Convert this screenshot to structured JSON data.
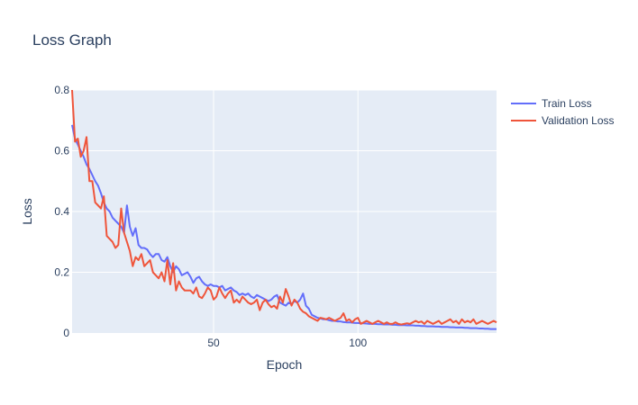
{
  "chart_data": {
    "type": "line",
    "title": "Loss Graph",
    "xlabel": "Epoch",
    "ylabel": "Loss",
    "xlim": [
      1,
      148
    ],
    "ylim": [
      0,
      0.8
    ],
    "xticks": [
      50,
      100
    ],
    "yticks": [
      0,
      0.2,
      0.4,
      0.6,
      0.8
    ],
    "grid": true,
    "legend_position": "top-right",
    "plot_background": "#e5ecf6",
    "series": [
      {
        "name": "Train Loss",
        "color": "#636efa",
        "points": [
          [
            1,
            0.685
          ],
          [
            2,
            0.64
          ],
          [
            3,
            0.62
          ],
          [
            4,
            0.6
          ],
          [
            5,
            0.58
          ],
          [
            6,
            0.555
          ],
          [
            7,
            0.54
          ],
          [
            8,
            0.52
          ],
          [
            9,
            0.5
          ],
          [
            10,
            0.485
          ],
          [
            11,
            0.46
          ],
          [
            12,
            0.43
          ],
          [
            13,
            0.41
          ],
          [
            14,
            0.4
          ],
          [
            15,
            0.38
          ],
          [
            16,
            0.37
          ],
          [
            17,
            0.36
          ],
          [
            18,
            0.35
          ],
          [
            19,
            0.33
          ],
          [
            20,
            0.42
          ],
          [
            21,
            0.35
          ],
          [
            22,
            0.32
          ],
          [
            23,
            0.345
          ],
          [
            24,
            0.29
          ],
          [
            25,
            0.28
          ],
          [
            26,
            0.28
          ],
          [
            27,
            0.275
          ],
          [
            28,
            0.26
          ],
          [
            29,
            0.25
          ],
          [
            30,
            0.26
          ],
          [
            31,
            0.26
          ],
          [
            32,
            0.24
          ],
          [
            33,
            0.235
          ],
          [
            34,
            0.25
          ],
          [
            35,
            0.22
          ],
          [
            36,
            0.2
          ],
          [
            37,
            0.22
          ],
          [
            38,
            0.21
          ],
          [
            39,
            0.19
          ],
          [
            40,
            0.195
          ],
          [
            41,
            0.2
          ],
          [
            42,
            0.185
          ],
          [
            43,
            0.165
          ],
          [
            44,
            0.18
          ],
          [
            45,
            0.185
          ],
          [
            46,
            0.17
          ],
          [
            47,
            0.16
          ],
          [
            48,
            0.155
          ],
          [
            49,
            0.16
          ],
          [
            50,
            0.155
          ],
          [
            51,
            0.155
          ],
          [
            52,
            0.15
          ],
          [
            53,
            0.155
          ],
          [
            54,
            0.14
          ],
          [
            55,
            0.145
          ],
          [
            56,
            0.15
          ],
          [
            57,
            0.14
          ],
          [
            58,
            0.135
          ],
          [
            59,
            0.125
          ],
          [
            60,
            0.13
          ],
          [
            61,
            0.125
          ],
          [
            62,
            0.13
          ],
          [
            63,
            0.12
          ],
          [
            64,
            0.115
          ],
          [
            65,
            0.125
          ],
          [
            66,
            0.12
          ],
          [
            67,
            0.115
          ],
          [
            68,
            0.11
          ],
          [
            69,
            0.105
          ],
          [
            70,
            0.11
          ],
          [
            71,
            0.12
          ],
          [
            72,
            0.125
          ],
          [
            73,
            0.1
          ],
          [
            74,
            0.095
          ],
          [
            75,
            0.09
          ],
          [
            76,
            0.1
          ],
          [
            77,
            0.095
          ],
          [
            78,
            0.105
          ],
          [
            79,
            0.1
          ],
          [
            80,
            0.11
          ],
          [
            81,
            0.13
          ],
          [
            82,
            0.09
          ],
          [
            83,
            0.08
          ],
          [
            84,
            0.06
          ],
          [
            85,
            0.055
          ],
          [
            86,
            0.05
          ],
          [
            87,
            0.048
          ],
          [
            88,
            0.045
          ],
          [
            89,
            0.045
          ],
          [
            90,
            0.042
          ],
          [
            91,
            0.04
          ],
          [
            92,
            0.04
          ],
          [
            93,
            0.038
          ],
          [
            94,
            0.038
          ],
          [
            95,
            0.036
          ],
          [
            96,
            0.035
          ],
          [
            97,
            0.035
          ],
          [
            98,
            0.034
          ],
          [
            99,
            0.033
          ],
          [
            100,
            0.033
          ],
          [
            101,
            0.032
          ],
          [
            102,
            0.032
          ],
          [
            103,
            0.031
          ],
          [
            104,
            0.03
          ],
          [
            105,
            0.03
          ],
          [
            106,
            0.03
          ],
          [
            107,
            0.029
          ],
          [
            108,
            0.029
          ],
          [
            109,
            0.028
          ],
          [
            110,
            0.028
          ],
          [
            111,
            0.028
          ],
          [
            112,
            0.027
          ],
          [
            113,
            0.027
          ],
          [
            114,
            0.026
          ],
          [
            115,
            0.026
          ],
          [
            116,
            0.026
          ],
          [
            117,
            0.025
          ],
          [
            118,
            0.025
          ],
          [
            119,
            0.025
          ],
          [
            120,
            0.024
          ],
          [
            121,
            0.024
          ],
          [
            122,
            0.023
          ],
          [
            123,
            0.023
          ],
          [
            124,
            0.022
          ],
          [
            125,
            0.022
          ],
          [
            126,
            0.022
          ],
          [
            127,
            0.021
          ],
          [
            128,
            0.021
          ],
          [
            129,
            0.02
          ],
          [
            130,
            0.02
          ],
          [
            131,
            0.02
          ],
          [
            132,
            0.019
          ],
          [
            133,
            0.019
          ],
          [
            134,
            0.018
          ],
          [
            135,
            0.018
          ],
          [
            136,
            0.018
          ],
          [
            137,
            0.017
          ],
          [
            138,
            0.017
          ],
          [
            139,
            0.016
          ],
          [
            140,
            0.016
          ],
          [
            141,
            0.016
          ],
          [
            142,
            0.015
          ],
          [
            143,
            0.015
          ],
          [
            144,
            0.014
          ],
          [
            145,
            0.014
          ],
          [
            146,
            0.013
          ],
          [
            147,
            0.013
          ],
          [
            148,
            0.013
          ]
        ]
      },
      {
        "name": "Validation Loss",
        "color": "#ef553b",
        "points": [
          [
            1,
            0.8
          ],
          [
            2,
            0.63
          ],
          [
            3,
            0.64
          ],
          [
            4,
            0.58
          ],
          [
            5,
            0.6
          ],
          [
            6,
            0.645
          ],
          [
            7,
            0.5
          ],
          [
            8,
            0.5
          ],
          [
            9,
            0.43
          ],
          [
            10,
            0.42
          ],
          [
            11,
            0.41
          ],
          [
            12,
            0.45
          ],
          [
            13,
            0.32
          ],
          [
            14,
            0.31
          ],
          [
            15,
            0.3
          ],
          [
            16,
            0.28
          ],
          [
            17,
            0.29
          ],
          [
            18,
            0.41
          ],
          [
            19,
            0.33
          ],
          [
            20,
            0.3
          ],
          [
            21,
            0.27
          ],
          [
            22,
            0.22
          ],
          [
            23,
            0.25
          ],
          [
            24,
            0.24
          ],
          [
            25,
            0.26
          ],
          [
            26,
            0.22
          ],
          [
            27,
            0.23
          ],
          [
            28,
            0.24
          ],
          [
            29,
            0.2
          ],
          [
            30,
            0.19
          ],
          [
            31,
            0.18
          ],
          [
            32,
            0.2
          ],
          [
            33,
            0.17
          ],
          [
            34,
            0.24
          ],
          [
            35,
            0.16
          ],
          [
            36,
            0.23
          ],
          [
            37,
            0.14
          ],
          [
            38,
            0.17
          ],
          [
            39,
            0.15
          ],
          [
            40,
            0.14
          ],
          [
            41,
            0.14
          ],
          [
            42,
            0.14
          ],
          [
            43,
            0.13
          ],
          [
            44,
            0.15
          ],
          [
            45,
            0.12
          ],
          [
            46,
            0.115
          ],
          [
            47,
            0.13
          ],
          [
            48,
            0.15
          ],
          [
            49,
            0.14
          ],
          [
            50,
            0.11
          ],
          [
            51,
            0.12
          ],
          [
            52,
            0.15
          ],
          [
            53,
            0.13
          ],
          [
            54,
            0.115
          ],
          [
            55,
            0.13
          ],
          [
            56,
            0.14
          ],
          [
            57,
            0.1
          ],
          [
            58,
            0.11
          ],
          [
            59,
            0.1
          ],
          [
            60,
            0.12
          ],
          [
            61,
            0.11
          ],
          [
            62,
            0.1
          ],
          [
            63,
            0.095
          ],
          [
            64,
            0.1
          ],
          [
            65,
            0.11
          ],
          [
            66,
            0.075
          ],
          [
            67,
            0.1
          ],
          [
            68,
            0.11
          ],
          [
            69,
            0.095
          ],
          [
            70,
            0.085
          ],
          [
            71,
            0.09
          ],
          [
            72,
            0.08
          ],
          [
            73,
            0.12
          ],
          [
            74,
            0.1
          ],
          [
            75,
            0.145
          ],
          [
            76,
            0.12
          ],
          [
            77,
            0.09
          ],
          [
            78,
            0.11
          ],
          [
            79,
            0.1
          ],
          [
            80,
            0.08
          ],
          [
            81,
            0.07
          ],
          [
            82,
            0.065
          ],
          [
            83,
            0.055
          ],
          [
            84,
            0.05
          ],
          [
            85,
            0.045
          ],
          [
            86,
            0.04
          ],
          [
            87,
            0.05
          ],
          [
            88,
            0.048
          ],
          [
            89,
            0.045
          ],
          [
            90,
            0.05
          ],
          [
            91,
            0.045
          ],
          [
            92,
            0.04
          ],
          [
            93,
            0.045
          ],
          [
            94,
            0.05
          ],
          [
            95,
            0.065
          ],
          [
            96,
            0.04
          ],
          [
            97,
            0.045
          ],
          [
            98,
            0.035
          ],
          [
            99,
            0.045
          ],
          [
            100,
            0.05
          ],
          [
            101,
            0.03
          ],
          [
            102,
            0.035
          ],
          [
            103,
            0.04
          ],
          [
            104,
            0.035
          ],
          [
            105,
            0.03
          ],
          [
            106,
            0.035
          ],
          [
            107,
            0.04
          ],
          [
            108,
            0.035
          ],
          [
            109,
            0.03
          ],
          [
            110,
            0.035
          ],
          [
            111,
            0.03
          ],
          [
            112,
            0.03
          ],
          [
            113,
            0.035
          ],
          [
            114,
            0.03
          ],
          [
            115,
            0.028
          ],
          [
            116,
            0.03
          ],
          [
            117,
            0.032
          ],
          [
            118,
            0.03
          ],
          [
            119,
            0.035
          ],
          [
            120,
            0.04
          ],
          [
            121,
            0.035
          ],
          [
            122,
            0.038
          ],
          [
            123,
            0.03
          ],
          [
            124,
            0.04
          ],
          [
            125,
            0.035
          ],
          [
            126,
            0.03
          ],
          [
            127,
            0.035
          ],
          [
            128,
            0.04
          ],
          [
            129,
            0.03
          ],
          [
            130,
            0.035
          ],
          [
            131,
            0.04
          ],
          [
            132,
            0.045
          ],
          [
            133,
            0.035
          ],
          [
            134,
            0.04
          ],
          [
            135,
            0.03
          ],
          [
            136,
            0.045
          ],
          [
            137,
            0.035
          ],
          [
            138,
            0.04
          ],
          [
            139,
            0.035
          ],
          [
            140,
            0.045
          ],
          [
            141,
            0.03
          ],
          [
            142,
            0.035
          ],
          [
            143,
            0.04
          ],
          [
            144,
            0.035
          ],
          [
            145,
            0.03
          ],
          [
            146,
            0.035
          ],
          [
            147,
            0.04
          ],
          [
            148,
            0.035
          ]
        ]
      }
    ]
  }
}
